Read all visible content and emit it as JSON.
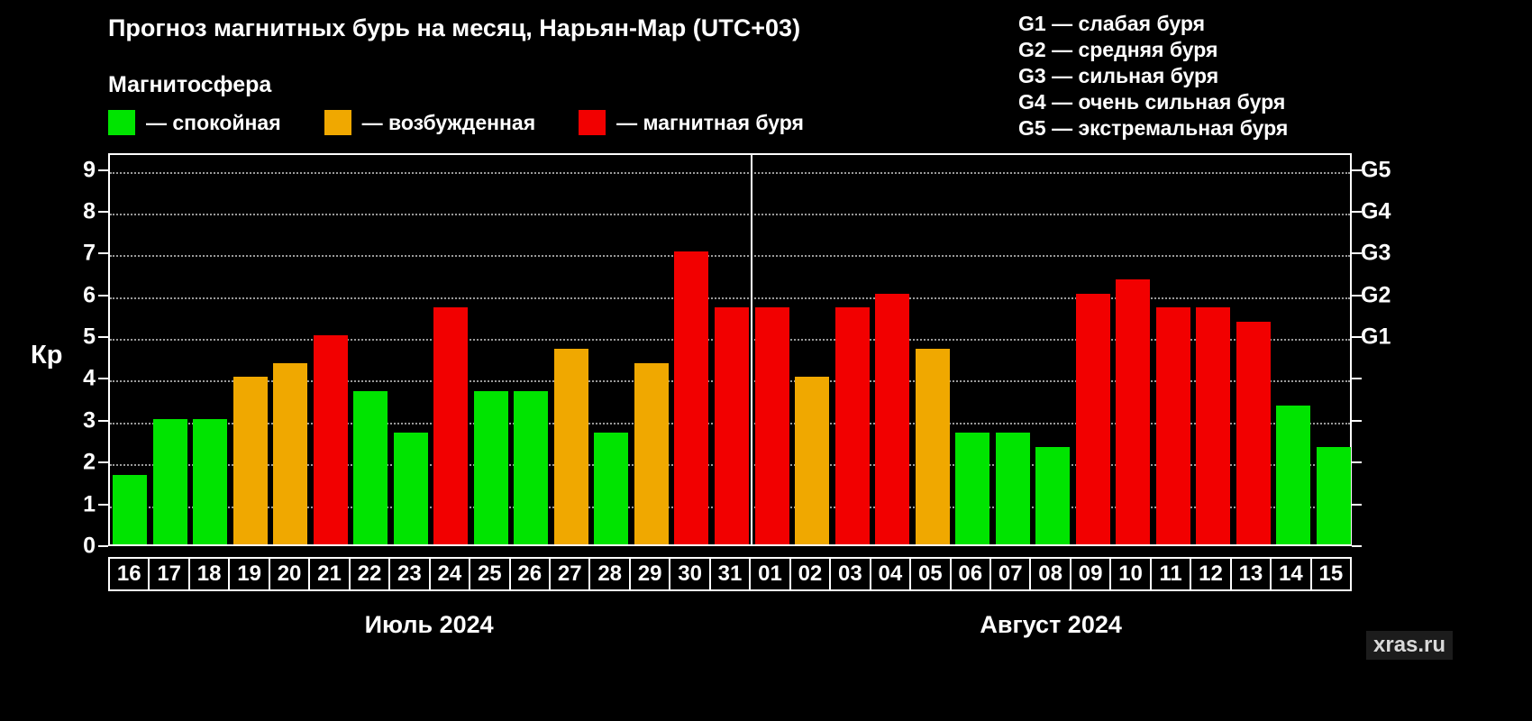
{
  "title": "Прогноз магнитных бурь на месяц, Нарьян-Мар (UTC+03)",
  "subtitle": "Магнитосфера",
  "legend": [
    {
      "key": "quiet",
      "label": "— спокойная",
      "color": "#00e400"
    },
    {
      "key": "excited",
      "label": "— возбужденная",
      "color": "#f0a800"
    },
    {
      "key": "storm",
      "label": "— магнитная буря",
      "color": "#f20000"
    }
  ],
  "g_scale_legend": [
    "G1 — слабая буря",
    "G2 — средняя буря",
    "G3 — сильная буря",
    "G4 — очень сильная буря",
    "G5 — экстремальная буря"
  ],
  "watermark": "xras.ru",
  "chart_data": {
    "type": "bar",
    "title": "Прогноз магнитных бурь на месяц, Нарьян-Мар (UTC+03)",
    "ylabel": "Кр",
    "ylim": [
      0,
      9
    ],
    "yticks": [
      0,
      1,
      2,
      3,
      4,
      5,
      6,
      7,
      8,
      9
    ],
    "grid": true,
    "right_axis_labels": [
      {
        "label": "G1",
        "value": 5
      },
      {
        "label": "G2",
        "value": 6
      },
      {
        "label": "G3",
        "value": 7
      },
      {
        "label": "G4",
        "value": 8
      },
      {
        "label": "G5",
        "value": 9
      }
    ],
    "color_map": {
      "quiet": "#00e400",
      "excited": "#f0a800",
      "storm": "#f20000"
    },
    "months": [
      {
        "label": "Июль 2024",
        "days": 16
      },
      {
        "label": "Август 2024",
        "days": 15
      }
    ],
    "days": [
      {
        "date": "16",
        "value": 1.67,
        "level": "quiet"
      },
      {
        "date": "17",
        "value": 3.0,
        "level": "quiet"
      },
      {
        "date": "18",
        "value": 3.0,
        "level": "quiet"
      },
      {
        "date": "19",
        "value": 4.0,
        "level": "excited"
      },
      {
        "date": "20",
        "value": 4.33,
        "level": "excited"
      },
      {
        "date": "21",
        "value": 5.0,
        "level": "storm"
      },
      {
        "date": "22",
        "value": 3.67,
        "level": "quiet"
      },
      {
        "date": "23",
        "value": 2.67,
        "level": "quiet"
      },
      {
        "date": "24",
        "value": 5.67,
        "level": "storm"
      },
      {
        "date": "25",
        "value": 3.67,
        "level": "quiet"
      },
      {
        "date": "26",
        "value": 3.67,
        "level": "quiet"
      },
      {
        "date": "27",
        "value": 4.67,
        "level": "excited"
      },
      {
        "date": "28",
        "value": 2.67,
        "level": "quiet"
      },
      {
        "date": "29",
        "value": 4.33,
        "level": "excited"
      },
      {
        "date": "30",
        "value": 7.0,
        "level": "storm"
      },
      {
        "date": "31",
        "value": 5.67,
        "level": "storm"
      },
      {
        "date": "01",
        "value": 5.67,
        "level": "storm"
      },
      {
        "date": "02",
        "value": 4.0,
        "level": "excited"
      },
      {
        "date": "03",
        "value": 5.67,
        "level": "storm"
      },
      {
        "date": "04",
        "value": 6.0,
        "level": "storm"
      },
      {
        "date": "05",
        "value": 4.67,
        "level": "excited"
      },
      {
        "date": "06",
        "value": 2.67,
        "level": "quiet"
      },
      {
        "date": "07",
        "value": 2.67,
        "level": "quiet"
      },
      {
        "date": "08",
        "value": 2.33,
        "level": "quiet"
      },
      {
        "date": "09",
        "value": 6.0,
        "level": "storm"
      },
      {
        "date": "10",
        "value": 6.33,
        "level": "storm"
      },
      {
        "date": "11",
        "value": 5.67,
        "level": "storm"
      },
      {
        "date": "12",
        "value": 5.67,
        "level": "storm"
      },
      {
        "date": "13",
        "value": 5.33,
        "level": "storm"
      },
      {
        "date": "14",
        "value": 3.33,
        "level": "quiet"
      },
      {
        "date": "15",
        "value": 2.33,
        "level": "quiet"
      }
    ]
  }
}
